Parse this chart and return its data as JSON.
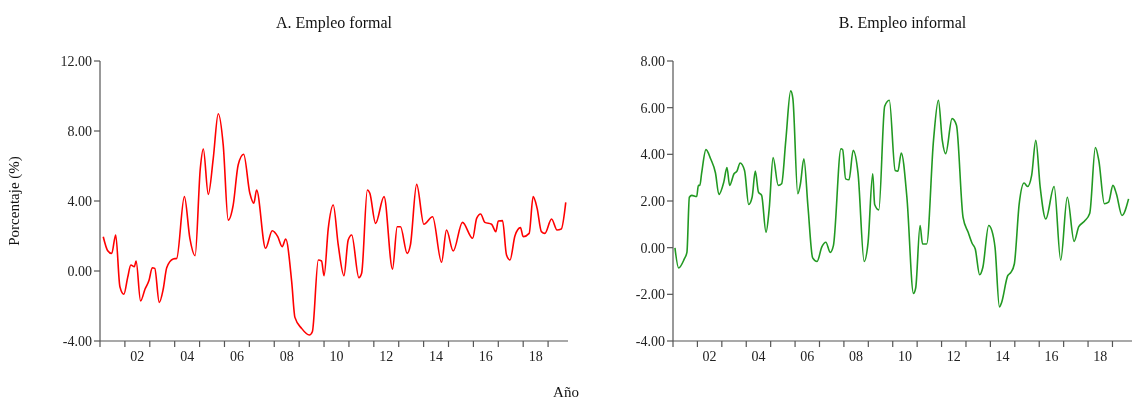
{
  "chart_data": [
    {
      "type": "line",
      "title": "A. Empleo formal",
      "ylabel": "Porcentaje (%)",
      "xlabel": "Año",
      "color": "#ff0000",
      "marker": "none",
      "line_style": "solid",
      "grid": false,
      "legend": false,
      "x": [
        0.63,
        0.81,
        0.97,
        1.13,
        1.3,
        1.46,
        1.61,
        1.74,
        1.88,
        1.95,
        2.13,
        2.31,
        2.47,
        2.6,
        2.7,
        2.88,
        3.04,
        3.18,
        3.44,
        3.58,
        3.89,
        4.11,
        4.32,
        4.53,
        4.65,
        4.85,
        5.05,
        5.25,
        5.45,
        5.65,
        5.85,
        6.05,
        6.27,
        6.52,
        6.68,
        6.79,
        7.15,
        7.42,
        7.64,
        7.82,
        7.96,
        8.2,
        8.33,
        8.6,
        8.91,
        9.03,
        9.27,
        9.4,
        9.5,
        9.67,
        9.87,
        10.07,
        10.3,
        10.47,
        10.61,
        10.9,
        11.01,
        11.24,
        11.34,
        11.57,
        11.91,
        12.25,
        12.44,
        12.57,
        12.84,
        12.97,
        13.22,
        13.51,
        13.86,
        14.22,
        14.42,
        14.69,
        15.06,
        15.47,
        15.63,
        15.79,
        15.96,
        16.23,
        16.4,
        16.5,
        16.67,
        16.83,
        16.97,
        17.17,
        17.39,
        17.5,
        17.74,
        17.9,
        18.06,
        18.23,
        18.37,
        18.64,
        18.86,
        19.03,
        19.21
      ],
      "values": [
        1.96,
        1.16,
        1.0,
        2.06,
        -0.9,
        -1.33,
        -0.38,
        0.34,
        0.25,
        0.57,
        -1.71,
        -1.03,
        -0.53,
        0.19,
        0.15,
        -1.79,
        -1.03,
        0.19,
        0.69,
        0.72,
        4.25,
        1.87,
        0.88,
        5.87,
        6.97,
        4.38,
        6.44,
        8.99,
        7.2,
        2.91,
        3.77,
        6.06,
        6.67,
        4.44,
        3.87,
        4.63,
        1.3,
        2.3,
        1.96,
        1.39,
        1.83,
        -0.61,
        -2.65,
        -3.28,
        -3.66,
        -3.47,
        0.63,
        0.57,
        -0.27,
        2.44,
        3.77,
        1.49,
        -0.27,
        1.77,
        2.06,
        -0.38,
        -0.13,
        4.63,
        4.44,
        2.72,
        4.25,
        0.11,
        2.53,
        2.53,
        1.01,
        1.49,
        4.95,
        2.67,
        3.1,
        0.5,
        2.34,
        1.14,
        2.78,
        1.87,
        3.01,
        3.26,
        2.78,
        2.67,
        2.25,
        2.86,
        2.88,
        0.91,
        0.63,
        2.02,
        2.48,
        1.96,
        2.15,
        4.25,
        3.58,
        2.25,
        2.15,
        2.97,
        2.34,
        2.4,
        3.92
      ],
      "xlim": [
        0.5,
        19.3
      ],
      "xticks": [
        {
          "value": 0.5,
          "label": null
        },
        {
          "value": 1.5,
          "label": null
        },
        {
          "value": 2.5,
          "label": null
        },
        {
          "value": 3.5,
          "label": null
        },
        {
          "value": 4.5,
          "label": null
        },
        {
          "value": 5.5,
          "label": null
        },
        {
          "value": 6.5,
          "label": null
        },
        {
          "value": 7.5,
          "label": null
        },
        {
          "value": 8.5,
          "label": null
        },
        {
          "value": 9.5,
          "label": null
        },
        {
          "value": 10.5,
          "label": null
        },
        {
          "value": 11.5,
          "label": null
        },
        {
          "value": 12.5,
          "label": null
        },
        {
          "value": 13.5,
          "label": null
        },
        {
          "value": 14.5,
          "label": null
        },
        {
          "value": 15.5,
          "label": null
        },
        {
          "value": 16.5,
          "label": null
        },
        {
          "value": 17.5,
          "label": null
        },
        {
          "value": 18.5,
          "label": null
        },
        {
          "value": 2,
          "label": "02"
        },
        {
          "value": 4,
          "label": "04"
        },
        {
          "value": 6,
          "label": "06"
        },
        {
          "value": 8,
          "label": "08"
        },
        10,
        12,
        14,
        16,
        18
      ],
      "ylim": [
        -4,
        12
      ],
      "yticks": [
        {
          "value": -4,
          "label": "-4.00"
        },
        {
          "value": 0,
          "label": "0.00"
        },
        {
          "value": 4,
          "label": "4.00"
        },
        {
          "value": 8,
          "label": "8.00"
        },
        {
          "value": 12,
          "label": "12.00"
        }
      ]
    },
    {
      "type": "line",
      "title": "B. Empleo informal",
      "color": "#229922",
      "marker": "none",
      "line_style": "solid",
      "grid": false,
      "legend": false,
      "x": [
        0.58,
        0.73,
        0.96,
        1.07,
        1.17,
        1.27,
        1.47,
        1.54,
        1.6,
        1.67,
        1.85,
        2.04,
        2.24,
        2.38,
        2.58,
        2.71,
        2.82,
        3.0,
        3.12,
        3.25,
        3.43,
        3.6,
        3.74,
        3.87,
        4.0,
        4.13,
        4.31,
        4.44,
        4.6,
        4.81,
        4.95,
        5.12,
        5.32,
        5.41,
        5.61,
        5.72,
        5.86,
        6.03,
        6.22,
        6.4,
        6.6,
        6.76,
        6.94,
        7.07,
        7.38,
        7.45,
        7.57,
        7.71,
        7.88,
        8.08,
        8.33,
        8.49,
        8.68,
        8.76,
        8.93,
        9.17,
        9.36,
        9.6,
        9.71,
        9.85,
        10.08,
        10.35,
        10.44,
        10.62,
        10.72,
        10.89,
        11.17,
        11.37,
        11.53,
        11.67,
        11.93,
        12.11,
        12.38,
        12.59,
        12.75,
        12.88,
        13.06,
        13.19,
        13.43,
        13.56,
        13.69,
        13.87,
        13.96,
        14.21,
        14.34,
        14.48,
        14.68,
        14.88,
        15.02,
        15.19,
        15.36,
        15.54,
        15.77,
        16.11,
        16.38,
        16.65,
        16.93,
        17.12,
        17.35,
        17.57,
        17.8,
        17.94,
        18.17,
        18.34,
        18.52,
        18.66,
        18.89,
        19.16
      ],
      "values": [
        -0.01,
        -0.87,
        -0.49,
        -0.2,
        2.16,
        2.24,
        2.19,
        2.67,
        2.67,
        3.17,
        4.2,
        3.81,
        3.2,
        2.28,
        2.81,
        3.43,
        2.67,
        3.17,
        3.28,
        3.63,
        3.31,
        1.85,
        2.16,
        3.28,
        2.38,
        2.24,
        0.66,
        1.66,
        3.86,
        2.67,
        2.74,
        4.6,
        6.72,
        6.39,
        2.31,
        2.74,
        3.81,
        1.73,
        -0.44,
        -0.59,
        0.04,
        0.23,
        -0.2,
        0.09,
        4.24,
        4.2,
        2.95,
        2.91,
        4.17,
        3.17,
        -0.59,
        0.23,
        3.17,
        1.85,
        1.62,
        6.06,
        6.32,
        3.31,
        3.28,
        4.06,
        2.16,
        -1.96,
        -1.73,
        0.95,
        0.16,
        0.16,
        4.6,
        6.32,
        4.6,
        4.03,
        5.53,
        5.25,
        1.3,
        0.66,
        0.19,
        -0.06,
        -1.16,
        -0.85,
        0.95,
        0.73,
        0.01,
        -2.54,
        -2.35,
        -1.2,
        -1.06,
        -0.7,
        1.88,
        2.77,
        2.62,
        3.1,
        4.6,
        2.59,
        1.23,
        2.62,
        -0.53,
        2.16,
        0.27,
        0.9,
        1.13,
        1.48,
        4.29,
        3.74,
        1.88,
        1.95,
        2.67,
        2.31,
        1.38,
        2.09
      ],
      "xlim": [
        0.5,
        19.3
      ],
      "xticks": [
        {
          "value": 0.5,
          "label": null
        },
        {
          "value": 1.5,
          "label": null
        },
        {
          "value": 2.5,
          "label": null
        },
        {
          "value": 3.5,
          "label": null
        },
        {
          "value": 4.5,
          "label": null
        },
        {
          "value": 5.5,
          "label": null
        },
        {
          "value": 6.5,
          "label": null
        },
        {
          "value": 7.5,
          "label": null
        },
        {
          "value": 8.5,
          "label": null
        },
        {
          "value": 9.5,
          "label": null
        },
        {
          "value": 10.5,
          "label": null
        },
        {
          "value": 11.5,
          "label": null
        },
        {
          "value": 12.5,
          "label": null
        },
        {
          "value": 13.5,
          "label": null
        },
        {
          "value": 14.5,
          "label": null
        },
        {
          "value": 15.5,
          "label": null
        },
        {
          "value": 16.5,
          "label": null
        },
        {
          "value": 17.5,
          "label": null
        },
        {
          "value": 18.5,
          "label": null
        },
        {
          "value": 2,
          "label": "02"
        },
        {
          "value": 4,
          "label": "04"
        },
        {
          "value": 6,
          "label": "06"
        },
        {
          "value": 8,
          "label": "08"
        },
        10,
        12,
        14,
        16,
        18
      ],
      "ylim": [
        -4,
        8
      ],
      "yticks": [
        {
          "value": -4,
          "label": "-4.00"
        },
        {
          "value": -2,
          "label": "-2.00"
        },
        {
          "value": 0,
          "label": "0.00"
        },
        {
          "value": 2,
          "label": "2.00"
        },
        {
          "value": 4,
          "label": "4.00"
        },
        {
          "value": 6,
          "label": "6.00"
        },
        {
          "value": 8,
          "label": "8.00"
        }
      ]
    }
  ]
}
